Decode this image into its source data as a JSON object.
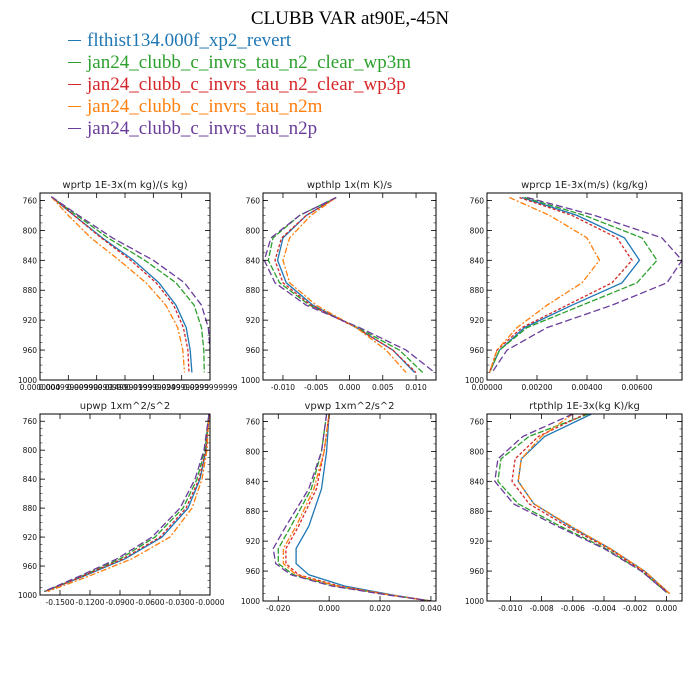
{
  "title": "CLUBB VAR at90E,-45N",
  "legend": [
    {
      "name": "flthist134.000f_xp2_revert",
      "color": "#1f77b4"
    },
    {
      "name": "jan24_clubb_c_invrs_tau_n2_clear_wp3m",
      "color": "#2ca02c"
    },
    {
      "name": "jan24_clubb_c_invrs_tau_n2_clear_wp3p",
      "color": "#d62728"
    },
    {
      "name": "jan24_clubb_c_invrs_tau_n2m",
      "color": "#ff7f0e"
    },
    {
      "name": "jan24_clubb_c_invrs_tau_n2p",
      "color": "#6a3d9a"
    }
  ],
  "chart_data": [
    {
      "type": "line",
      "title": "wprtp  1E-3x(m kg)/(s kg)",
      "xlim": [
        0.0,
        0.03
      ],
      "ylim": [
        1000,
        750
      ],
      "y_inverted": true,
      "xticks": [
        0.0,
        0.005,
        0.01,
        0.015,
        0.02,
        0.025,
        0.03
      ],
      "xtick_labels": [
        "0.0000000",
        "0.00499999990",
        "0.00999999990",
        "0.0149999999",
        "0.0199999999",
        "0.0249999999",
        "0.0299999999"
      ],
      "yticks": [
        760,
        800,
        840,
        880,
        920,
        960,
        1000
      ],
      "y": [
        755,
        780,
        810,
        840,
        870,
        900,
        930,
        960,
        990
      ],
      "series": [
        {
          "values": [
            0.002,
            0.006,
            0.011,
            0.0165,
            0.021,
            0.024,
            0.0258,
            0.0265,
            0.0268
          ]
        },
        {
          "values": [
            0.002,
            0.0065,
            0.012,
            0.0185,
            0.024,
            0.0272,
            0.0285,
            0.0289,
            0.029
          ]
        },
        {
          "values": [
            0.002,
            0.006,
            0.0108,
            0.016,
            0.0205,
            0.0236,
            0.0253,
            0.0261,
            0.0263
          ]
        },
        {
          "values": [
            0.002,
            0.005,
            0.009,
            0.014,
            0.0187,
            0.0222,
            0.0243,
            0.0252,
            0.0255
          ]
        },
        {
          "values": [
            0.002,
            0.0068,
            0.0128,
            0.02,
            0.0255,
            0.0285,
            0.0297,
            0.03,
            0.03
          ]
        }
      ]
    },
    {
      "type": "line",
      "title": "wpthlp  1x(m K)/s",
      "xlim": [
        -0.013,
        0.013
      ],
      "ylim": [
        1000,
        750
      ],
      "y_inverted": true,
      "xticks": [
        -0.01,
        -0.005,
        0.0,
        0.005,
        0.01
      ],
      "xtick_labels": [
        "-0.010",
        "-0.005",
        "0.000",
        "0.005",
        "0.010"
      ],
      "yticks": [
        760,
        800,
        840,
        880,
        920,
        960,
        1000
      ],
      "y": [
        756,
        780,
        810,
        840,
        870,
        900,
        930,
        960,
        990
      ],
      "series": [
        {
          "values": [
            -0.002,
            -0.0065,
            -0.01,
            -0.0108,
            -0.0095,
            -0.0055,
            0.001,
            0.0065,
            0.0098
          ]
        },
        {
          "values": [
            -0.002,
            -0.0075,
            -0.0115,
            -0.0122,
            -0.0105,
            -0.006,
            0.0012,
            0.0075,
            0.011
          ]
        },
        {
          "values": [
            -0.002,
            -0.0065,
            -0.0102,
            -0.0112,
            -0.01,
            -0.0058,
            0.001,
            0.0065,
            0.01
          ]
        },
        {
          "values": [
            -0.002,
            -0.0058,
            -0.009,
            -0.01,
            -0.009,
            -0.005,
            0.001,
            0.0055,
            0.0085
          ]
        },
        {
          "values": [
            -0.002,
            -0.0075,
            -0.0118,
            -0.0128,
            -0.0112,
            -0.0065,
            0.0015,
            0.0085,
            0.0128
          ]
        }
      ]
    },
    {
      "type": "line",
      "title": "wprcp  1E-3x(m/s) (kg/kg)",
      "xlim": [
        0.0,
        0.0078
      ],
      "ylim": [
        1000,
        750
      ],
      "y_inverted": true,
      "xticks": [
        0.0,
        0.002,
        0.004,
        0.006
      ],
      "xtick_labels": [
        "0.00000",
        "0.00200",
        "0.00400",
        "0.00600"
      ],
      "yticks": [
        760,
        800,
        840,
        880,
        920,
        960,
        1000
      ],
      "y": [
        756,
        780,
        810,
        840,
        870,
        900,
        930,
        960,
        990
      ],
      "series": [
        {
          "values": [
            0.0014,
            0.0036,
            0.0055,
            0.0061,
            0.0054,
            0.0034,
            0.0015,
            0.0005,
            0.0001
          ]
        },
        {
          "values": [
            0.0015,
            0.0039,
            0.0062,
            0.0068,
            0.006,
            0.0038,
            0.0016,
            0.0005,
            0.0001
          ]
        },
        {
          "values": [
            0.0013,
            0.0034,
            0.0052,
            0.0058,
            0.005,
            0.0032,
            0.0014,
            0.0004,
            0.0001
          ]
        },
        {
          "values": [
            0.0009,
            0.0025,
            0.004,
            0.0045,
            0.0038,
            0.0024,
            0.0012,
            0.0004,
            0.0001
          ]
        },
        {
          "values": [
            0.0016,
            0.0043,
            0.007,
            0.0078,
            0.0072,
            0.005,
            0.0024,
            0.0008,
            0.0002
          ]
        }
      ]
    },
    {
      "type": "line",
      "title": "upwp  1xm^2/s^2",
      "xlim": [
        -0.17,
        0.0
      ],
      "ylim": [
        1000,
        750
      ],
      "y_inverted": true,
      "xticks": [
        -0.15,
        -0.12,
        -0.09,
        -0.06,
        -0.03,
        0.0
      ],
      "xtick_labels": [
        "-0.1500",
        "-0.1200",
        "-0.0900",
        "-0.0600",
        "-0.0300",
        "-0.0000"
      ],
      "yticks": [
        760,
        800,
        840,
        880,
        920,
        960,
        1000
      ],
      "y": [
        750,
        800,
        840,
        880,
        920,
        950,
        975,
        995
      ],
      "series": [
        {
          "values": [
            -0.001,
            -0.004,
            -0.01,
            -0.022,
            -0.048,
            -0.085,
            -0.128,
            -0.165
          ]
        },
        {
          "values": [
            -0.001,
            -0.005,
            -0.013,
            -0.027,
            -0.055,
            -0.09,
            -0.13,
            -0.165
          ]
        },
        {
          "values": [
            -0.001,
            -0.004,
            -0.011,
            -0.024,
            -0.05,
            -0.087,
            -0.129,
            -0.165
          ]
        },
        {
          "values": [
            -0.001,
            -0.003,
            -0.008,
            -0.018,
            -0.04,
            -0.078,
            -0.123,
            -0.162
          ]
        },
        {
          "values": [
            -0.001,
            -0.006,
            -0.015,
            -0.03,
            -0.058,
            -0.093,
            -0.132,
            -0.166
          ]
        }
      ]
    },
    {
      "type": "line",
      "title": "vpwp  1xm^2/s^2",
      "xlim": [
        -0.026,
        0.042
      ],
      "ylim": [
        1000,
        750
      ],
      "y_inverted": true,
      "xticks": [
        -0.02,
        0.0,
        0.02,
        0.04
      ],
      "xtick_labels": [
        "-0.020",
        "0.000",
        "0.020",
        "0.040"
      ],
      "yticks": [
        760,
        800,
        840,
        880,
        920,
        960,
        1000
      ],
      "y": [
        750,
        800,
        850,
        900,
        930,
        950,
        965,
        980,
        992,
        1000
      ],
      "series": [
        {
          "values": [
            0.0,
            -0.001,
            -0.003,
            -0.008,
            -0.013,
            -0.013,
            -0.008,
            0.006,
            0.025,
            0.04
          ]
        },
        {
          "values": [
            -0.001,
            -0.003,
            -0.007,
            -0.015,
            -0.02,
            -0.02,
            -0.014,
            0.002,
            0.024,
            0.04
          ]
        },
        {
          "values": [
            0.0,
            -0.002,
            -0.005,
            -0.012,
            -0.017,
            -0.017,
            -0.012,
            0.004,
            0.024,
            0.04
          ]
        },
        {
          "values": [
            0.0,
            -0.002,
            -0.006,
            -0.013,
            -0.018,
            -0.018,
            -0.013,
            0.003,
            0.024,
            0.04
          ]
        },
        {
          "values": [
            -0.001,
            -0.003,
            -0.008,
            -0.017,
            -0.022,
            -0.021,
            -0.015,
            0.001,
            0.023,
            0.04
          ]
        }
      ]
    },
    {
      "type": "line",
      "title": "rtpthlp  1E-3x(kg K)/kg",
      "xlim": [
        -0.0115,
        0.001
      ],
      "ylim": [
        1000,
        750
      ],
      "y_inverted": true,
      "xticks": [
        -0.01,
        -0.008,
        -0.006,
        -0.004,
        -0.002,
        0.0
      ],
      "xtick_labels": [
        "-0.010",
        "-0.008",
        "-0.006",
        "-0.004",
        "-0.002",
        "0.000"
      ],
      "yticks": [
        760,
        800,
        840,
        880,
        920,
        960,
        1000
      ],
      "y": [
        750,
        780,
        810,
        840,
        870,
        900,
        930,
        960,
        990
      ],
      "series": [
        {
          "values": [
            -0.0048,
            -0.0078,
            -0.0093,
            -0.0095,
            -0.0085,
            -0.0062,
            -0.0036,
            -0.0014,
            0.0002
          ]
        },
        {
          "values": [
            -0.005,
            -0.0088,
            -0.0106,
            -0.0108,
            -0.0095,
            -0.0068,
            -0.0039,
            -0.0016,
            0.0001
          ]
        },
        {
          "values": [
            -0.0052,
            -0.0082,
            -0.0097,
            -0.0099,
            -0.0088,
            -0.0064,
            -0.0037,
            -0.0015,
            0.0002
          ]
        },
        {
          "values": [
            -0.006,
            -0.008,
            -0.0093,
            -0.0095,
            -0.0085,
            -0.0061,
            -0.0036,
            -0.0014,
            0.0002
          ]
        },
        {
          "values": [
            -0.006,
            -0.0092,
            -0.0108,
            -0.011,
            -0.0098,
            -0.007,
            -0.004,
            -0.0016,
            0.0001
          ]
        }
      ]
    }
  ]
}
